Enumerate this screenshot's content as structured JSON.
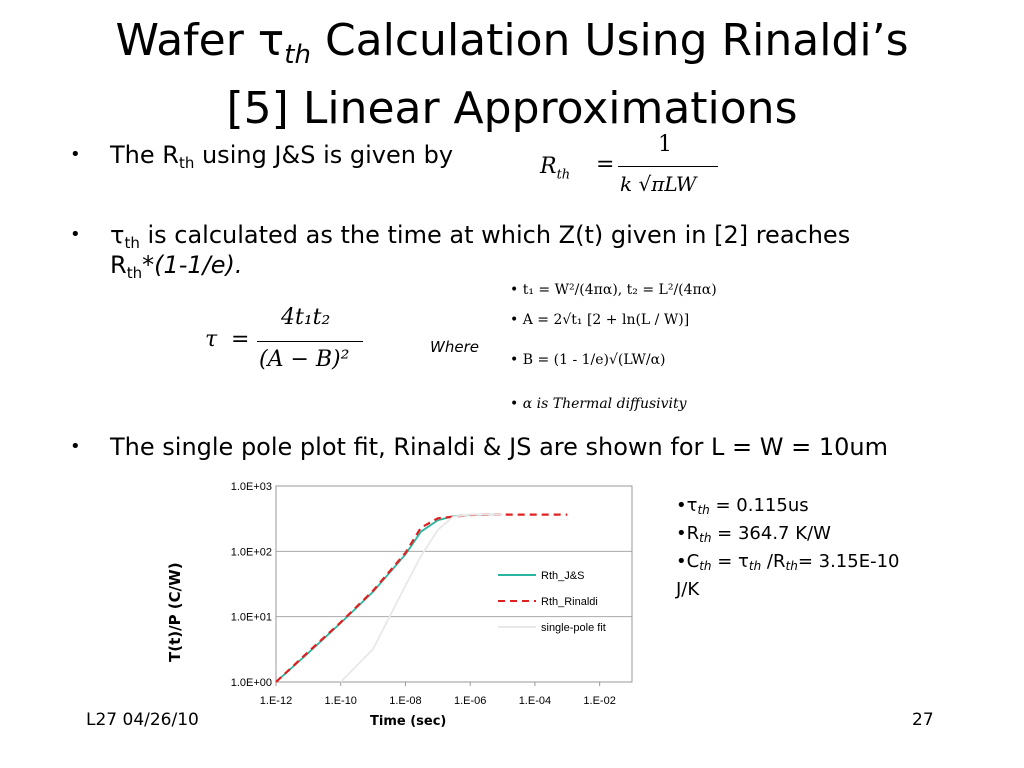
{
  "slide": {
    "title_line1_pre": "Wafer τ",
    "title_sub": "th",
    "title_line1_post": " Calculation Using Rinaldi’s",
    "title_line2": "[5] Linear Approximations",
    "bullet1_pre": "The R",
    "bullet1_sub": "th",
    "bullet1_post": " using J&S is given by",
    "bullet2_a": "τ",
    "bullet2_sub": "th",
    "bullet2_b": " is calculated as the time at which Z(t) given in [2] reaches",
    "bullet2_c": "R",
    "bullet2_c_sub": "th",
    "bullet2_d": "*(1-1/e).",
    "bullet3": "The single pole plot fit, Rinaldi & JS are shown for L = W = 10um",
    "where_label": "Where",
    "bullet_char": "•",
    "stats": {
      "tau_label": "τ",
      "tau_sub": "th",
      "tau_value": " = 0.115us",
      "r_label": "R",
      "r_sub": "th",
      "r_value": " = 364.7 K/W",
      "c_label": "C",
      "c_sub": "th",
      "c_mid": " = τ",
      "c_sub2": "th",
      "c_mid2": " /R",
      "c_sub3": "th",
      "c_value": "= 3.15E-10",
      "c_unit": "J/K"
    },
    "footer_left": "L27 04/26/10",
    "footer_right": "27"
  },
  "formulas": {
    "rth_lhs": "R",
    "rth_lhs_sub": "th",
    "rth_num": "1",
    "rth_den": "k √πLW",
    "tau_lhs": "τ",
    "tau_num": "4t₁t₂",
    "tau_den": "(A − B)²",
    "t_def": "• t₁ = W²/(4πα), t₂ = L²/(4πα)",
    "a_def": "• A = 2√t₁ [2 + ln(L / W)]",
    "b_def": "• B = (1 - 1/e)√(LW/α)",
    "alpha_def": "• α is Thermal diffusivity"
  },
  "chart_data": {
    "type": "line",
    "title": "",
    "xlabel": "Time (sec)",
    "ylabel": "T(t)/P (C/W)",
    "x_scale": "log",
    "y_scale": "log",
    "xlim": [
      1e-12,
      0.1
    ],
    "ylim": [
      1,
      1000
    ],
    "x_ticks": [
      "1.E-12",
      "1.E-10",
      "1.E-08",
      "1.E-06",
      "1.E-04",
      "1.E-02"
    ],
    "y_ticks": [
      "1.0E+00",
      "1.0E+01",
      "1.0E+02",
      "1.0E+03"
    ],
    "grid": "horizontal",
    "legend_position": "right-middle",
    "series": [
      {
        "name": "Rth_J&S",
        "color": "#2ab5a0",
        "style": "solid",
        "x": [
          1e-12,
          1e-11,
          1e-10,
          1e-09,
          1e-08,
          3e-08,
          1e-07,
          3e-07,
          1e-06,
          3e-06,
          1e-05
        ],
        "y": [
          1.0,
          2.8,
          8.0,
          24.0,
          90.0,
          200.0,
          300.0,
          345.0,
          360.0,
          364.0,
          365.0
        ]
      },
      {
        "name": "Rth_Rinaldi",
        "color": "#e02020",
        "style": "dashed",
        "x": [
          1e-12,
          1e-11,
          1e-10,
          1e-09,
          1e-08,
          3e-08,
          1e-07,
          1e-06,
          1e-05,
          0.0001,
          0.001
        ],
        "y": [
          1.0,
          2.9,
          8.2,
          25.0,
          95.0,
          230.0,
          320.0,
          360.0,
          365.0,
          365.0,
          365.0
        ]
      },
      {
        "name": "single-pole fit",
        "color": "#e8e8e8",
        "style": "solid",
        "x": [
          1e-10,
          1e-09,
          1e-08,
          3e-08,
          1e-07,
          3e-07,
          1e-06,
          1e-05
        ],
        "y": [
          1.0,
          3.2,
          30.0,
          84.0,
          213.0,
          340.0,
          364.0,
          364.7
        ]
      }
    ]
  }
}
